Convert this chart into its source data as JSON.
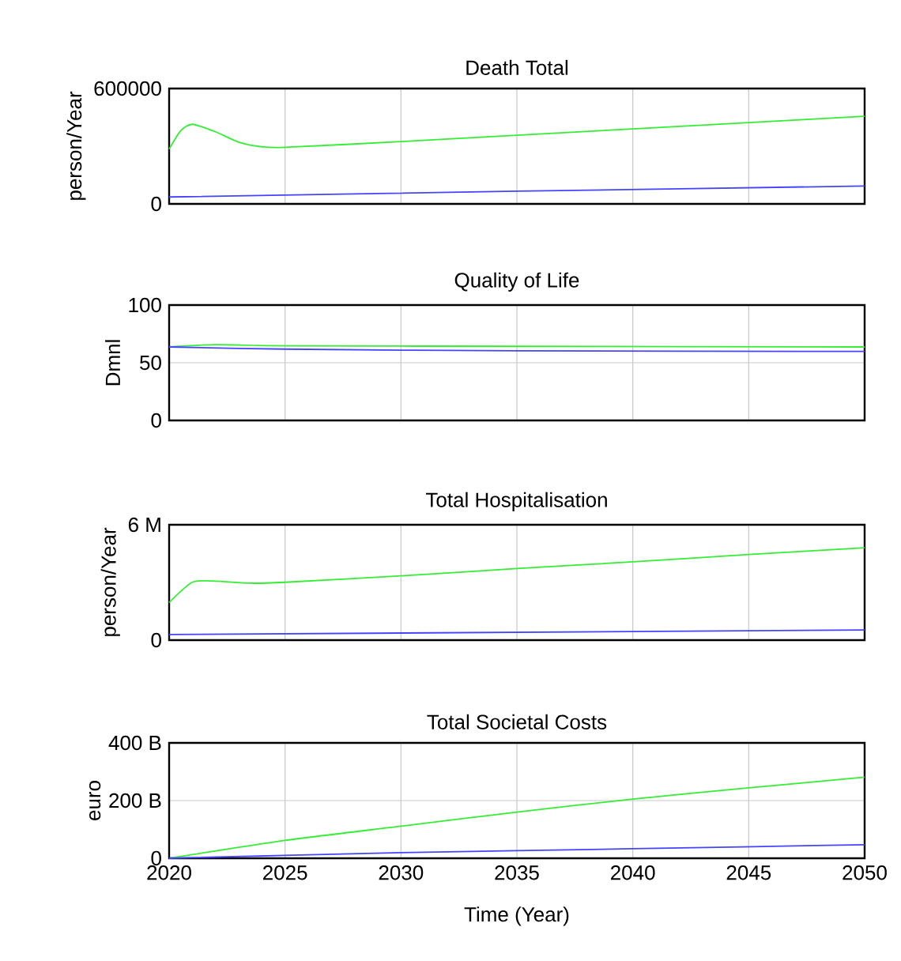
{
  "chart_data": [
    {
      "type": "line",
      "title": "Death Total",
      "ylabel": "person/Year",
      "xlim": [
        2020,
        2050
      ],
      "xticks": [
        2020,
        2025,
        2030,
        2035,
        2040,
        2045,
        2050
      ],
      "ylim": [
        0,
        600000
      ],
      "yticks": [
        0,
        600000
      ],
      "grid": true,
      "tick_labels": "y",
      "series": [
        {
          "color": "#33ee33",
          "x": [
            2020,
            2020.5,
            2021,
            2022,
            2023,
            2024,
            2025,
            2030,
            2035,
            2040,
            2045,
            2050
          ],
          "values": [
            285000,
            381000,
            414000,
            375000,
            321000,
            297000,
            294000,
            324000,
            357000,
            390000,
            423000,
            456000
          ]
        },
        {
          "color": "#4444ff",
          "x": [
            2020,
            2035,
            2050
          ],
          "values": [
            36000,
            66000,
            93000
          ]
        }
      ]
    },
    {
      "type": "line",
      "title": "Quality of Life",
      "ylabel": "Dmnl",
      "xlim": [
        2020,
        2050
      ],
      "xticks": [
        2020,
        2025,
        2030,
        2035,
        2040,
        2045,
        2050
      ],
      "ylim": [
        0,
        100
      ],
      "yticks": [
        0,
        50,
        100
      ],
      "grid": true,
      "tick_labels": "y",
      "series": [
        {
          "color": "#33ee33",
          "x": [
            2020,
            2022,
            2025,
            2035,
            2050
          ],
          "values": [
            63.7,
            65.7,
            64.7,
            64.2,
            63.7
          ]
        },
        {
          "color": "#4444ff",
          "x": [
            2020,
            2025,
            2035,
            2050
          ],
          "values": [
            63.7,
            61.8,
            60.3,
            59.8
          ]
        }
      ]
    },
    {
      "type": "line",
      "title": "Total Hospitalisation",
      "ylabel": "person/Year",
      "xlim": [
        2020,
        2050
      ],
      "xticks": [
        2020,
        2025,
        2030,
        2035,
        2040,
        2045,
        2050
      ],
      "ylim": [
        0,
        6000000
      ],
      "yticks": [
        0,
        {
          "value": 6000000,
          "label": "6 M"
        }
      ],
      "grid": true,
      "tick_labels": "y",
      "series": [
        {
          "color": "#33ee33",
          "x": [
            2020,
            2021,
            2022,
            2023.5,
            2025,
            2030,
            2035,
            2040,
            2045,
            2050
          ],
          "values": [
            1960000,
            3010000,
            3070000,
            2960000,
            3010000,
            3340000,
            3720000,
            4070000,
            4450000,
            4800000
          ]
        },
        {
          "color": "#4444ff",
          "x": [
            2020,
            2050
          ],
          "values": [
            290000,
            530000
          ]
        }
      ]
    },
    {
      "type": "line",
      "title": "Total Societal Costs",
      "xlabel": "Time (Year)",
      "ylabel": "euro",
      "xlim": [
        2020,
        2050
      ],
      "xticks": [
        2020,
        2025,
        2030,
        2035,
        2040,
        2045,
        2050
      ],
      "ylim": [
        0,
        400000000000
      ],
      "yticks": [
        0,
        {
          "value": 200000000000,
          "label": "200 B"
        },
        {
          "value": 400000000000,
          "label": "400 B"
        }
      ],
      "grid": true,
      "series": [
        {
          "color": "#33ee33",
          "x": [
            2020,
            2025,
            2030,
            2035,
            2040,
            2045,
            2050
          ],
          "values": [
            0,
            62000000000,
            111000000000,
            160000000000,
            205000000000,
            244000000000,
            281000000000
          ]
        },
        {
          "color": "#4444ff",
          "x": [
            2020,
            2030,
            2040,
            2050
          ],
          "values": [
            0,
            19500000000,
            33000000000,
            47000000000
          ]
        }
      ]
    }
  ]
}
